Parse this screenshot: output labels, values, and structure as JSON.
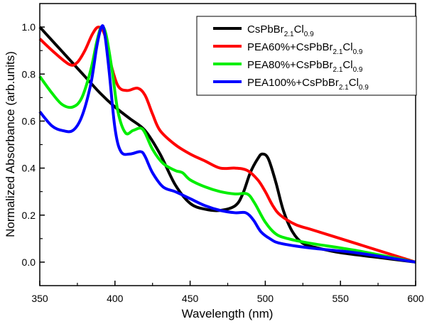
{
  "chart_data": {
    "type": "line",
    "title": "",
    "xlabel": "Wavelength (nm)",
    "ylabel": "Normalized Absorbance (arb.units)",
    "xlim": [
      350,
      600
    ],
    "ylim": [
      -0.1,
      1.1
    ],
    "xticks": [
      "350",
      "400",
      "450",
      "500",
      "550",
      "600"
    ],
    "yticks": [
      "0.0",
      "0.2",
      "0.4",
      "0.6",
      "0.8",
      "1.0"
    ],
    "grid": false,
    "legend_placement": "top-right",
    "series": [
      {
        "name": "CsPbBr2.1Cl0.9",
        "label": {
          "main": "CsPbBr",
          "sub1": "2.1",
          "mid": "Cl",
          "sub2": "0.9"
        },
        "color": "#000000",
        "x": [
          350,
          360,
          370,
          380,
          390,
          400,
          410,
          420,
          430,
          440,
          450,
          460,
          470,
          480,
          485,
          490,
          495,
          498,
          502,
          507,
          512,
          518,
          525,
          535,
          550,
          575,
          600
        ],
        "y": [
          1.0,
          0.93,
          0.86,
          0.79,
          0.72,
          0.66,
          0.61,
          0.56,
          0.46,
          0.33,
          0.25,
          0.225,
          0.22,
          0.24,
          0.29,
          0.38,
          0.44,
          0.46,
          0.44,
          0.34,
          0.22,
          0.13,
          0.08,
          0.06,
          0.04,
          0.02,
          0.0
        ]
      },
      {
        "name": "PEA60%+CsPbBr2.1Cl0.9",
        "label": {
          "main": "PEA60%+CsPbBr",
          "sub1": "2.1",
          "mid": "Cl",
          "sub2": "0.9"
        },
        "color": "#ff0000",
        "x": [
          350,
          360,
          370,
          375,
          380,
          385,
          389,
          393,
          397,
          402,
          408,
          415,
          420,
          425,
          430,
          440,
          450,
          460,
          470,
          480,
          488,
          495,
          500,
          505,
          510,
          520,
          530,
          550,
          575,
          600
        ],
        "y": [
          0.95,
          0.89,
          0.84,
          0.85,
          0.9,
          0.97,
          1.0,
          0.97,
          0.85,
          0.75,
          0.73,
          0.74,
          0.71,
          0.63,
          0.56,
          0.5,
          0.46,
          0.43,
          0.4,
          0.4,
          0.39,
          0.35,
          0.3,
          0.24,
          0.2,
          0.16,
          0.14,
          0.1,
          0.05,
          0.0
        ]
      },
      {
        "name": "PEA80%+CsPbBr2.1Cl0.9",
        "label": {
          "main": "PEA80%+CsPbBr",
          "sub1": "2.1",
          "mid": "Cl",
          "sub2": "0.9"
        },
        "color": "#00ee00",
        "x": [
          350,
          358,
          365,
          372,
          378,
          384,
          388,
          391,
          394,
          398,
          402,
          407,
          412,
          417,
          420,
          425,
          432,
          440,
          445,
          450,
          460,
          470,
          480,
          488,
          493,
          500,
          507,
          515,
          530,
          560,
          600
        ],
        "y": [
          0.79,
          0.72,
          0.67,
          0.66,
          0.7,
          0.82,
          0.94,
          1.0,
          0.97,
          0.82,
          0.64,
          0.55,
          0.56,
          0.57,
          0.55,
          0.48,
          0.42,
          0.39,
          0.38,
          0.35,
          0.32,
          0.3,
          0.29,
          0.29,
          0.25,
          0.17,
          0.12,
          0.1,
          0.08,
          0.05,
          0.0
        ]
      },
      {
        "name": "PEA100%+CsPbBr2.1Cl0.9",
        "label": {
          "main": "PEA100%+CsPbBr",
          "sub1": "2.1",
          "mid": "Cl",
          "sub2": "0.9"
        },
        "color": "#0000ff",
        "x": [
          350,
          358,
          365,
          372,
          378,
          384,
          388,
          391,
          393,
          396,
          400,
          404,
          410,
          417,
          420,
          425,
          432,
          440,
          450,
          460,
          470,
          480,
          487,
          492,
          497,
          503,
          510,
          530,
          560,
          600
        ],
        "y": [
          0.64,
          0.58,
          0.56,
          0.56,
          0.62,
          0.76,
          0.92,
          1.0,
          0.98,
          0.82,
          0.57,
          0.47,
          0.46,
          0.47,
          0.45,
          0.38,
          0.32,
          0.3,
          0.27,
          0.24,
          0.22,
          0.21,
          0.21,
          0.18,
          0.13,
          0.1,
          0.08,
          0.06,
          0.04,
          0.0
        ]
      }
    ]
  }
}
